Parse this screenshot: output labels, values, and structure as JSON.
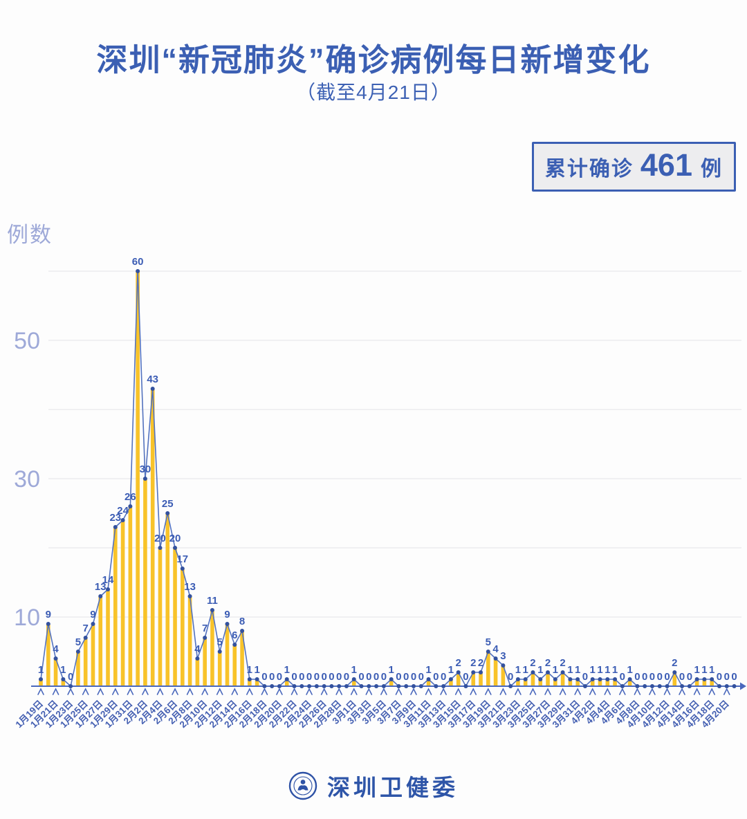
{
  "header": {
    "title": "深圳“新冠肺炎”确诊病例每日新增变化",
    "subtitle": "（截至4月21日）"
  },
  "badge": {
    "prefix": "累计确诊",
    "value": "461",
    "unit": "例"
  },
  "footer": {
    "org": "深圳卫健委"
  },
  "chart_data": {
    "type": "bar",
    "overlay": "line",
    "title": "深圳“新冠肺炎”确诊病例每日新增变化",
    "subtitle": "（截至4月21日）",
    "xlabel": "",
    "ylabel": "例数",
    "ylim": [
      0,
      60
    ],
    "yticks": [
      10,
      30,
      50
    ],
    "gridline_values": [
      10,
      20,
      30,
      40,
      50,
      60
    ],
    "grid": "horizontal-only",
    "label_every_n_points": 2,
    "x_tick_labels": [
      "1月19日",
      "1月21日",
      "1月23日",
      "1月25日",
      "1月27日",
      "1月29日",
      "1月31日",
      "2月2日",
      "2月4日",
      "2月6日",
      "2月8日",
      "2月10日",
      "2月12日",
      "2月14日",
      "2月16日",
      "2月18日",
      "2月20日",
      "2月22日",
      "2月24日",
      "2月26日",
      "2月28日",
      "3月1日",
      "3月3日",
      "3月5日",
      "3月7日",
      "3月9日",
      "3月11日",
      "3月13日",
      "3月15日",
      "3月17日",
      "3月19日",
      "3月21日",
      "3月23日",
      "3月25日",
      "3月27日",
      "3月29日",
      "3月31日",
      "4月2日",
      "4月4日",
      "4月6日",
      "4月8日",
      "4月10日",
      "4月12日",
      "4月14日",
      "4月16日",
      "4月18日",
      "4月20日"
    ],
    "values": [
      1,
      9,
      4,
      1,
      0,
      5,
      7,
      9,
      13,
      14,
      23,
      24,
      26,
      60,
      30,
      43,
      20,
      25,
      20,
      17,
      13,
      4,
      7,
      11,
      5,
      9,
      6,
      8,
      1,
      1,
      0,
      0,
      0,
      1,
      0,
      0,
      0,
      0,
      0,
      0,
      0,
      0,
      1,
      0,
      0,
      0,
      0,
      1,
      0,
      0,
      0,
      0,
      1,
      0,
      0,
      1,
      2,
      0,
      2,
      2,
      5,
      4,
      3,
      0,
      1,
      1,
      2,
      1,
      2,
      1,
      2,
      1,
      1,
      0,
      1,
      1,
      1,
      1,
      0,
      1,
      0,
      0,
      0,
      0,
      0,
      2,
      0,
      0,
      1,
      1,
      1,
      0,
      0,
      0
    ],
    "cumulative_total": 461,
    "colors": {
      "bar": "#f8c32a",
      "line": "#5372be",
      "dot": "#33519e",
      "value_label": "#3b5cb4",
      "axis": "#4a68bc",
      "x_tick_label": "#4560b2",
      "y_tick_label": "#9ea9d8",
      "gridline": "#e8e8eb",
      "accent": "#3b5fb3"
    }
  }
}
